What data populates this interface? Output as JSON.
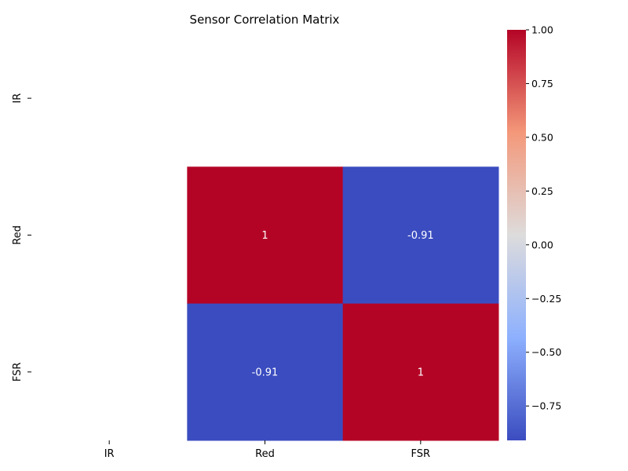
{
  "chart_data": {
    "type": "heatmap",
    "title": "Sensor Correlation Matrix",
    "xlabel": "",
    "ylabel": "",
    "x_categories": [
      "IR",
      "Red",
      "FSR"
    ],
    "y_categories": [
      "IR",
      "Red",
      "FSR"
    ],
    "values": [
      [
        null,
        null,
        null
      ],
      [
        null,
        1,
        -0.91
      ],
      [
        null,
        -0.91,
        1
      ]
    ],
    "cell_labels": [
      [
        null,
        null,
        null
      ],
      [
        null,
        "1",
        "-0.91"
      ],
      [
        null,
        "-0.91",
        "1"
      ]
    ],
    "colormap": "coolwarm",
    "colorbar": {
      "vmin": -0.91,
      "vmax": 1.0,
      "ticks": [
        1.0,
        0.75,
        0.5,
        0.25,
        0.0,
        -0.25,
        -0.5,
        -0.75
      ],
      "tick_labels": [
        "1.00",
        "0.75",
        "0.50",
        "0.25",
        "0.00",
        "−0.25",
        "−0.50",
        "−0.75"
      ]
    },
    "colors": {
      "high": "#b40426",
      "mid": "#dddcdc",
      "low": "#3b4cc0",
      "annotation_text": "#ffffff"
    },
    "grid": false
  }
}
